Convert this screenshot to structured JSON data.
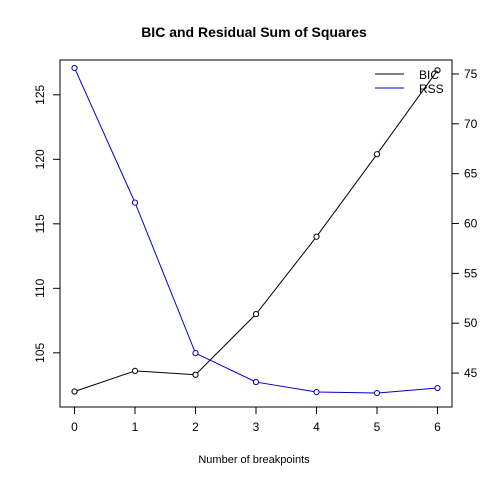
{
  "chart_data": {
    "type": "line",
    "title": "BIC and Residual Sum of Squares",
    "xlabel": "Number of breakpoints",
    "ylabel": "",
    "y2label": "",
    "x": [
      0,
      1,
      2,
      3,
      4,
      5,
      6
    ],
    "xlim": [
      -0.24,
      6.24
    ],
    "xticks": [
      0,
      1,
      2,
      3,
      4,
      5,
      6
    ],
    "left_axis": {
      "ylim": [
        100.8,
        127.7
      ],
      "ticks": [
        105,
        110,
        115,
        120,
        125
      ]
    },
    "right_axis": {
      "ylim": [
        41.6,
        76.4
      ],
      "ticks": [
        45,
        50,
        55,
        60,
        65,
        70,
        75
      ]
    },
    "series": [
      {
        "name": "BIC",
        "color": "#000000",
        "axis": "left",
        "marker": "open-circle",
        "values": [
          102.0,
          103.6,
          103.3,
          108.0,
          114.0,
          120.4,
          126.9
        ]
      },
      {
        "name": "RSS",
        "color": "#0000cc",
        "axis": "right",
        "marker": "open-circle",
        "values": [
          75.6,
          62.1,
          47.0,
          44.1,
          43.1,
          43.0,
          43.5
        ]
      }
    ],
    "legend": {
      "placement": "top-right",
      "entries": [
        "BIC",
        "RSS"
      ]
    },
    "grid": false
  }
}
